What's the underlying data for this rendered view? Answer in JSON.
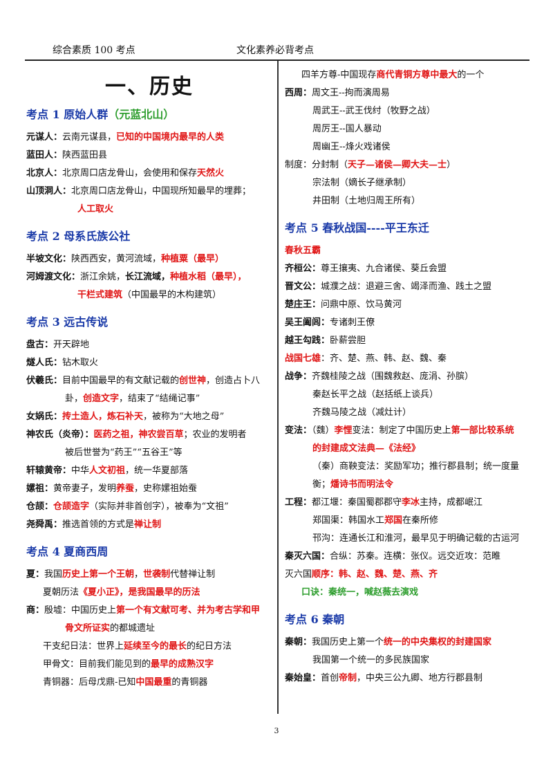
{
  "header": {
    "left": "综合素质 100 考点",
    "right": "文化素养必背考点"
  },
  "title": "一、历史",
  "sec1": {
    "title": "考点 1  原始人群",
    "paren": "（元蓝北山）"
  },
  "yuanmou": {
    "label": "元谋人：",
    "t1": "云南元谋县，",
    "r1": "已知的中国境内最早的人类"
  },
  "lantian": {
    "label": "蓝田人：",
    "t1": "陕西蓝田县"
  },
  "beijing": {
    "label": "北京人：",
    "t1": "北京周口店龙骨山，会使用和保存",
    "r1": "天然火"
  },
  "shanding": {
    "label": "山顶洞人：",
    "t1": "北京周口店龙骨山，中国现所知最早的埋葬；",
    "r1": "人工取火"
  },
  "sec2": {
    "title": "考点 2  母系氏族公社"
  },
  "banpo": {
    "label": "半坡文化：",
    "t1": "陕西西安，黄河流域，",
    "r1": "种植粟（最早）"
  },
  "hemudu": {
    "label": "河姆渡文化：",
    "t1": "浙江余姚，",
    "b1": "长江流域，",
    "r1": "种植水稻（最早），",
    "r2": "干栏式建筑",
    "t2": "（中国最早的木构建筑）"
  },
  "sec3": {
    "title": "考点 3  远古传说"
  },
  "pangu": {
    "label": "盘古：",
    "t1": "开天辟地"
  },
  "suiren": {
    "label": "燧人氏：",
    "t1": "钻木取火"
  },
  "fuxi": {
    "label": "伏羲氏：",
    "t1": "目前中国最早的有文献记载的",
    "r1": "创世神",
    "t2": "，创造占卜八",
    "t3": "卦，",
    "r2": "创造文字",
    "t4": "，结束了“结绳记事”"
  },
  "nvwa": {
    "label": "女娲氏：",
    "r1": "抟土造人，炼石补天",
    "t1": "，被称为“大地之母”"
  },
  "shennong": {
    "label": "神农氏（炎帝）：",
    "r1": "医药之祖，神农尝百草",
    "t1": "；农业的发明者",
    "t2": "被后世誉为“药王”“五谷王”等"
  },
  "xuanyuan": {
    "label": "轩辕黄帝：",
    "t1": "中华",
    "r1": "人文初祖",
    "t2": "，统一华夏部落"
  },
  "leizu": {
    "label": "嫘祖：",
    "t1": "黄帝妻子，发明",
    "r1": "养蚕",
    "t2": "，史称嫘祖始蚕"
  },
  "cangjie": {
    "label": "仓颉：",
    "r1": "仓颉造字",
    "t1": "（实际并非首创字），被奉为“文祖”"
  },
  "yaoshun": {
    "label": "尧舜禹：",
    "t1": "推选首领的方式是",
    "r1": "禅让制"
  },
  "sec4": {
    "title": "考点 4  夏商西周"
  },
  "xia": {
    "label": "夏：",
    "t1": "我国",
    "r1": "历史上第一个王朝",
    "t2": "，",
    "r2": "世袭制",
    "t3": "代替禅让制"
  },
  "xiali": {
    "t1": "夏朝历法",
    "r1": "《夏小正》，是我国最早的历法"
  },
  "shang": {
    "label": "商：",
    "t1": "殷墟：中国历史上",
    "r1": "第一个有文献可考、并为考古学和甲",
    "r2": "骨文所证实",
    "t2": "的都城遗址"
  },
  "ganzhi": {
    "t1": "干支纪日法：世界上",
    "r1": "延续至今的最长",
    "t2": "的纪日方法"
  },
  "jiagu": {
    "t1": "甲骨文：目前我们能见到的",
    "r1": "最早的成熟汉字"
  },
  "qingtong": {
    "t1": "青铜器：后母戊鼎-已知",
    "r1": "中国最重",
    "t2": "的青铜器"
  },
  "siyang": {
    "t1": "四羊方尊-中国现存",
    "r1": "商代青铜方尊中最大",
    "t2": "的一个"
  },
  "xizhou": {
    "label": "西周：",
    "t1": "周文王--拘而演周易"
  },
  "wuwang": {
    "t1": "周武王--武王伐纣（牧野之战）"
  },
  "liwang": {
    "t1": "周厉王--国人暴动"
  },
  "youwang": {
    "t1": "周幽王--烽火戏诸侯"
  },
  "zhidu": {
    "t1": "制度：分封制（",
    "r1": "天子—诸侯—卿大夫—士",
    "t2": "）"
  },
  "zongfa": {
    "t1": "宗法制（嫡长子继承制）"
  },
  "jingtian": {
    "t1": "井田制（土地归周王所有）"
  },
  "sec5": {
    "title": "考点 5  春秋战国----平王东迁"
  },
  "chunqiu": {
    "r1": "春秋五霸"
  },
  "qihuan": {
    "label": "齐桓公：",
    "t1": "尊王攘夷、九合诸侯、葵丘会盟"
  },
  "jinwen": {
    "label": "晋文公：",
    "t1": "城濮之战：退避三舍、竭泽而渔、践土之盟"
  },
  "chuzhuang": {
    "label": "楚庄王：",
    "t1": "问鼎中原、饮马黄河"
  },
  "wuwangh": {
    "label": "吴王阖闾：",
    "t1": "专诸刺王僚"
  },
  "yuewang": {
    "label": "越王勾践：",
    "t1": "卧薪尝胆"
  },
  "zhanguo": {
    "r1": "战国七雄",
    "t1": "：齐、楚、燕、韩、赵、魏、秦"
  },
  "zhanzheng": {
    "label": "战争：",
    "t1": "齐魏桂陵之战（围魏救赵、庞涓、孙膑）"
  },
  "changping": {
    "t1": "秦赵长平之战（赵括纸上谈兵）"
  },
  "maling": {
    "t1": "齐魏马陵之战（减灶计）"
  },
  "bianfa": {
    "label": "变法：",
    "t1": "（魏）",
    "r1": "李悝",
    "t2": "变法：制定了中国历史上",
    "r2": "第一部比较系统",
    "r3": "的封建成文法典—《法经》"
  },
  "shangyang": {
    "t1": "（秦）商鞅变法：奖励军功；推行郡县制；统一度量",
    "t2": "衡；",
    "r1": "燔诗书而明法令"
  },
  "gongcheng": {
    "label": "工程：",
    "t1": "都江堰：秦国蜀郡郡守",
    "r1": "李冰",
    "t2": "主持，成都岷江"
  },
  "zhengguo": {
    "t1": "郑国渠：韩国水工",
    "r1": "郑国",
    "t2": "在秦所修"
  },
  "hangou": {
    "t1": "邗沟：连通长江和淮河，最早见于明确记载的古运河"
  },
  "qinmie": {
    "label": "秦灭六国：",
    "t1": "合纵：苏秦。连横：张仪。远交近攻：范睢"
  },
  "shunxu": {
    "t1": "灭六国",
    "r1": "顺序：韩、赵、魏、楚、燕、齐"
  },
  "koujue": {
    "g1": "口诀：秦统一，喊赵薇去演戏"
  },
  "sec6": {
    "title": "考点 6  秦朝"
  },
  "qinchao": {
    "label": "秦朝：",
    "t1": "我国历史上第一个",
    "r1": "统一的中央集权的封建国家"
  },
  "qinchao2": {
    "t1": "我国第一个统一的多民族国家"
  },
  "qinshi": {
    "label": "秦始皇：",
    "t1": "首创",
    "r1": "帝制",
    "t2": "，中央三公九卿、地方行郡县制"
  },
  "page_number": "3"
}
